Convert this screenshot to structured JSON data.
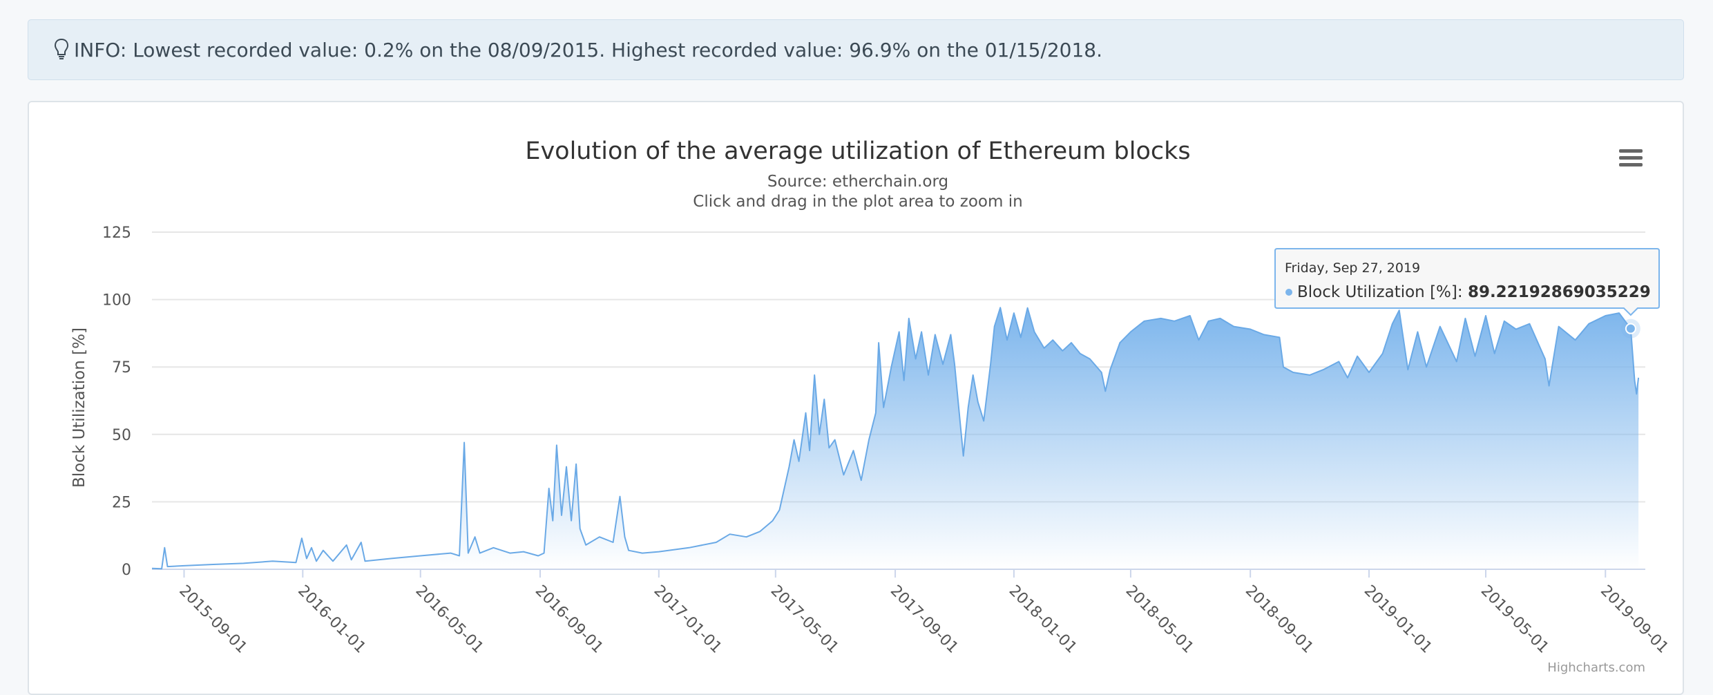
{
  "info": {
    "text": "INFO: Lowest recorded value: 0.2% on the 08/09/2015. Highest recorded value: 96.9% on the 01/15/2018."
  },
  "credits": "Highcharts.com",
  "tooltip": {
    "date": "Friday, Sep 27, 2019",
    "series_label": "Block Utilization [%]: ",
    "value": "89.22192869035229"
  },
  "colors": {
    "series": "#7cb5ec",
    "series_line": "#6aa9e6",
    "grid": "#e6e6e6",
    "axis": "#ccd6eb",
    "text": "#333333",
    "label": "#555555",
    "info_bg": "#e6eff6"
  },
  "chart_data": {
    "type": "area",
    "title": "Evolution of the average utilization of Ethereum blocks",
    "subtitle": "Source: etherchain.org",
    "subtitle2": "Click and drag in the plot area to zoom in",
    "xlabel": "",
    "ylabel": "Block Utilization [%]",
    "ylim": [
      0,
      125
    ],
    "yticks": [
      "0",
      "25",
      "50",
      "75",
      "100",
      "125"
    ],
    "xlim": [
      "2015-07-30",
      "2019-10-12"
    ],
    "xticks": [
      "2015-09-01",
      "2016-01-01",
      "2016-05-01",
      "2016-09-01",
      "2017-01-01",
      "2017-05-01",
      "2017-09-01",
      "2018-01-01",
      "2018-05-01",
      "2018-09-01",
      "2019-01-01",
      "2019-05-01",
      "2019-09-01"
    ],
    "grid": true,
    "legend": "none",
    "series": [
      {
        "name": "Block Utilization [%]",
        "points": [
          [
            "2015-07-30",
            0.3
          ],
          [
            "2015-08-09",
            0.2
          ],
          [
            "2015-08-12",
            8
          ],
          [
            "2015-08-15",
            1
          ],
          [
            "2015-09-01",
            1.3
          ],
          [
            "2015-10-01",
            1.8
          ],
          [
            "2015-11-01",
            2.2
          ],
          [
            "2015-12-01",
            3
          ],
          [
            "2015-12-25",
            2.5
          ],
          [
            "2015-12-31",
            11.5
          ],
          [
            "2016-01-05",
            4
          ],
          [
            "2016-01-10",
            8
          ],
          [
            "2016-01-15",
            3
          ],
          [
            "2016-01-22",
            7
          ],
          [
            "2016-02-01",
            3
          ],
          [
            "2016-02-15",
            9
          ],
          [
            "2016-02-20",
            3.5
          ],
          [
            "2016-03-01",
            10
          ],
          [
            "2016-03-05",
            3
          ],
          [
            "2016-04-01",
            4
          ],
          [
            "2016-05-01",
            5
          ],
          [
            "2016-06-01",
            6
          ],
          [
            "2016-06-10",
            5
          ],
          [
            "2016-06-15",
            47
          ],
          [
            "2016-06-19",
            6
          ],
          [
            "2016-06-26",
            12
          ],
          [
            "2016-07-01",
            6
          ],
          [
            "2016-07-15",
            8
          ],
          [
            "2016-08-01",
            6
          ],
          [
            "2016-08-15",
            6.5
          ],
          [
            "2016-08-30",
            5
          ],
          [
            "2016-09-05",
            6
          ],
          [
            "2016-09-10",
            30
          ],
          [
            "2016-09-14",
            18
          ],
          [
            "2016-09-18",
            46
          ],
          [
            "2016-09-23",
            20
          ],
          [
            "2016-09-28",
            38
          ],
          [
            "2016-10-03",
            18
          ],
          [
            "2016-10-08",
            39
          ],
          [
            "2016-10-12",
            15
          ],
          [
            "2016-10-18",
            9
          ],
          [
            "2016-11-01",
            12
          ],
          [
            "2016-11-15",
            10
          ],
          [
            "2016-11-22",
            27
          ],
          [
            "2016-11-27",
            12
          ],
          [
            "2016-12-01",
            7
          ],
          [
            "2016-12-15",
            6
          ],
          [
            "2017-01-01",
            6.5
          ],
          [
            "2017-02-01",
            8
          ],
          [
            "2017-03-01",
            10
          ],
          [
            "2017-03-15",
            13
          ],
          [
            "2017-04-01",
            12
          ],
          [
            "2017-04-15",
            14
          ],
          [
            "2017-04-28",
            18
          ],
          [
            "2017-05-05",
            22
          ],
          [
            "2017-05-15",
            38
          ],
          [
            "2017-05-20",
            48
          ],
          [
            "2017-05-25",
            40
          ],
          [
            "2017-06-01",
            58
          ],
          [
            "2017-06-05",
            44
          ],
          [
            "2017-06-10",
            72
          ],
          [
            "2017-06-15",
            50
          ],
          [
            "2017-06-20",
            63
          ],
          [
            "2017-06-25",
            45
          ],
          [
            "2017-07-01",
            48
          ],
          [
            "2017-07-10",
            35
          ],
          [
            "2017-07-20",
            44
          ],
          [
            "2017-07-28",
            33
          ],
          [
            "2017-08-05",
            48
          ],
          [
            "2017-08-12",
            58
          ],
          [
            "2017-08-15",
            84
          ],
          [
            "2017-08-20",
            60
          ],
          [
            "2017-08-28",
            75
          ],
          [
            "2017-09-05",
            88
          ],
          [
            "2017-09-10",
            70
          ],
          [
            "2017-09-15",
            93
          ],
          [
            "2017-09-22",
            78
          ],
          [
            "2017-09-28",
            88
          ],
          [
            "2017-10-05",
            72
          ],
          [
            "2017-10-12",
            87
          ],
          [
            "2017-10-20",
            76
          ],
          [
            "2017-10-28",
            87
          ],
          [
            "2017-11-01",
            76
          ],
          [
            "2017-11-10",
            42
          ],
          [
            "2017-11-15",
            60
          ],
          [
            "2017-11-20",
            72
          ],
          [
            "2017-11-25",
            62
          ],
          [
            "2017-12-01",
            55
          ],
          [
            "2017-12-08",
            76
          ],
          [
            "2017-12-12",
            90
          ],
          [
            "2017-12-18",
            97
          ],
          [
            "2017-12-25",
            85
          ],
          [
            "2018-01-01",
            95
          ],
          [
            "2018-01-08",
            86
          ],
          [
            "2018-01-15",
            96.9
          ],
          [
            "2018-01-22",
            88
          ],
          [
            "2018-02-01",
            82
          ],
          [
            "2018-02-10",
            85
          ],
          [
            "2018-02-20",
            81
          ],
          [
            "2018-03-01",
            84
          ],
          [
            "2018-03-10",
            80
          ],
          [
            "2018-03-20",
            78
          ],
          [
            "2018-04-01",
            73
          ],
          [
            "2018-04-05",
            66
          ],
          [
            "2018-04-10",
            74
          ],
          [
            "2018-04-20",
            84
          ],
          [
            "2018-05-01",
            88
          ],
          [
            "2018-05-15",
            92
          ],
          [
            "2018-06-01",
            93
          ],
          [
            "2018-06-15",
            92
          ],
          [
            "2018-07-01",
            94
          ],
          [
            "2018-07-10",
            85
          ],
          [
            "2018-07-20",
            92
          ],
          [
            "2018-08-01",
            93
          ],
          [
            "2018-08-15",
            90
          ],
          [
            "2018-09-01",
            89
          ],
          [
            "2018-09-15",
            87
          ],
          [
            "2018-10-01",
            86
          ],
          [
            "2018-10-05",
            75
          ],
          [
            "2018-10-15",
            73
          ],
          [
            "2018-11-01",
            72
          ],
          [
            "2018-11-15",
            74
          ],
          [
            "2018-12-01",
            77
          ],
          [
            "2018-12-10",
            71
          ],
          [
            "2018-12-20",
            79
          ],
          [
            "2019-01-01",
            73
          ],
          [
            "2019-01-15",
            80
          ],
          [
            "2019-01-25",
            91
          ],
          [
            "2019-02-01",
            96
          ],
          [
            "2019-02-10",
            74
          ],
          [
            "2019-02-20",
            88
          ],
          [
            "2019-03-01",
            75
          ],
          [
            "2019-03-15",
            90
          ],
          [
            "2019-04-01",
            77
          ],
          [
            "2019-04-10",
            93
          ],
          [
            "2019-04-20",
            79
          ],
          [
            "2019-05-01",
            94
          ],
          [
            "2019-05-10",
            80
          ],
          [
            "2019-05-20",
            92
          ],
          [
            "2019-06-01",
            89
          ],
          [
            "2019-06-15",
            91
          ],
          [
            "2019-07-01",
            78
          ],
          [
            "2019-07-05",
            68
          ],
          [
            "2019-07-15",
            90
          ],
          [
            "2019-08-01",
            85
          ],
          [
            "2019-08-15",
            91
          ],
          [
            "2019-09-01",
            94
          ],
          [
            "2019-09-15",
            95
          ],
          [
            "2019-09-27",
            89.22192869035229
          ],
          [
            "2019-10-01",
            70
          ],
          [
            "2019-10-03",
            65
          ],
          [
            "2019-10-05",
            71
          ]
        ]
      }
    ]
  }
}
